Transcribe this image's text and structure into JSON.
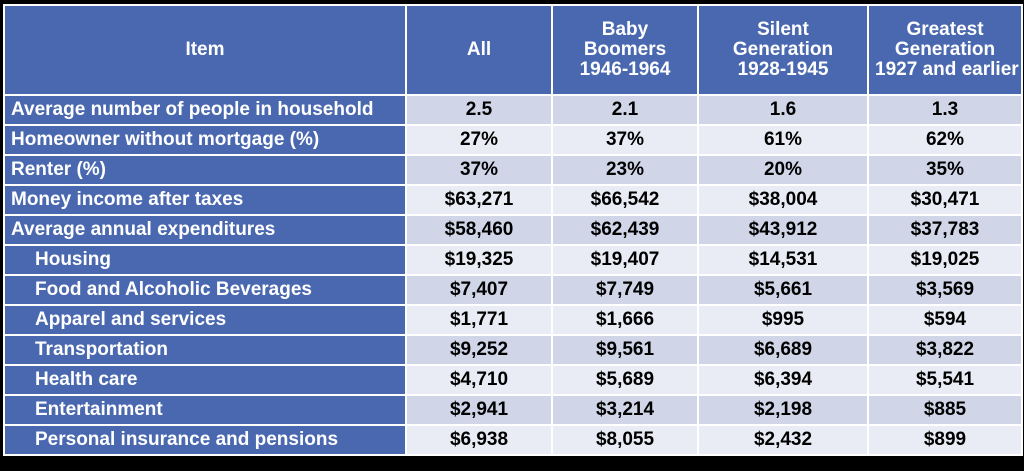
{
  "colors": {
    "header_bg": "#4a68b0",
    "label_bg": "#4a68b0",
    "row_even_bg": "#d0d6e8",
    "row_odd_bg": "#e9ecf4",
    "header_text": "#ffffff",
    "value_text": "#000000",
    "border": "#ffffff",
    "frame": "#000000"
  },
  "chart_data": {
    "type": "table",
    "columns": [
      {
        "lines": [
          "Item"
        ]
      },
      {
        "lines": [
          "All"
        ]
      },
      {
        "lines": [
          "Baby",
          "Boomers",
          "1946-1964"
        ]
      },
      {
        "lines": [
          "Silent",
          "Generation",
          "1928-1945"
        ]
      },
      {
        "lines": [
          "Greatest",
          "Generation",
          "1927 and earlier"
        ]
      }
    ],
    "rows": [
      {
        "label": "Average number of people in household",
        "indent": false,
        "values": [
          "2.5",
          "2.1",
          "1.6",
          "1.3"
        ]
      },
      {
        "label": "Homeowner without mortgage (%)",
        "indent": false,
        "values": [
          "27%",
          "37%",
          "61%",
          "62%"
        ]
      },
      {
        "label": "Renter (%)",
        "indent": false,
        "values": [
          "37%",
          "23%",
          "20%",
          "35%"
        ]
      },
      {
        "label": "Money income after taxes",
        "indent": false,
        "values": [
          "$63,271",
          "$66,542",
          "$38,004",
          "$30,471"
        ]
      },
      {
        "label": "Average annual expenditures",
        "indent": false,
        "values": [
          "$58,460",
          "$62,439",
          "$43,912",
          "$37,783"
        ]
      },
      {
        "label": "Housing",
        "indent": true,
        "values": [
          "$19,325",
          "$19,407",
          "$14,531",
          "$19,025"
        ]
      },
      {
        "label": "Food and Alcoholic Beverages",
        "indent": true,
        "values": [
          "$7,407",
          "$7,749",
          "$5,661",
          "$3,569"
        ]
      },
      {
        "label": "Apparel and services",
        "indent": true,
        "values": [
          "$1,771",
          "$1,666",
          "$995",
          "$594"
        ]
      },
      {
        "label": "Transportation",
        "indent": true,
        "values": [
          "$9,252",
          "$9,561",
          "$6,689",
          "$3,822"
        ]
      },
      {
        "label": "Health care",
        "indent": true,
        "values": [
          "$4,710",
          "$5,689",
          "$6,394",
          "$5,541"
        ]
      },
      {
        "label": "Entertainment",
        "indent": true,
        "values": [
          "$2,941",
          "$3,214",
          "$2,198",
          "$885"
        ]
      },
      {
        "label": "Personal insurance and pensions",
        "indent": true,
        "values": [
          "$6,938",
          "$8,055",
          "$2,432",
          "$899"
        ]
      }
    ]
  }
}
